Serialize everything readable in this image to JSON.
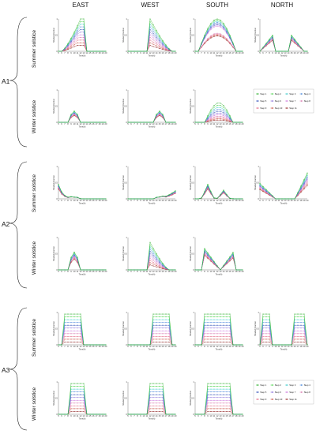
{
  "figure": {
    "columns": [
      "EAST",
      "WEST",
      "SOUTH",
      "NORTH"
    ],
    "groups": [
      "A1",
      "A2",
      "A3"
    ],
    "rows": [
      "Summer solstice",
      "Winter solstice"
    ]
  },
  "chart_data": {
    "type": "line",
    "xlabel": "Time(h)",
    "ylabel": "Shaded Fraction",
    "ylim": [
      0,
      1
    ],
    "x": [
      5,
      6,
      7,
      8,
      9,
      10,
      11,
      12,
      13,
      14,
      15,
      16,
      17,
      18,
      19,
      20
    ],
    "y_ticks": [
      "0",
      "0.5",
      "1"
    ],
    "legend": [
      {
        "name": "Step 1",
        "color": "#1faa1f"
      },
      {
        "name": "Step 2",
        "color": "#3ccf3c"
      },
      {
        "name": "Step 3",
        "color": "#2ac4c4"
      },
      {
        "name": "Step 4",
        "color": "#3d7fd9"
      },
      {
        "name": "Step 5",
        "color": "#1e3fb0"
      },
      {
        "name": "Step 6",
        "color": "#7a5cd6"
      },
      {
        "name": "Step 7",
        "color": "#c86ad9"
      },
      {
        "name": "Step 8",
        "color": "#d66ca8"
      },
      {
        "name": "Step 9",
        "color": "#e05a7a"
      },
      {
        "name": "Step 10",
        "color": "#c0392b"
      },
      {
        "name": "Step 11",
        "color": "#8b1a1a"
      }
    ],
    "panels": [
      {
        "group": "A1",
        "row": "Summer solstice",
        "col": "EAST",
        "shape": "rise",
        "start": 6,
        "end": 13,
        "peak": 1.0
      },
      {
        "group": "A1",
        "row": "Summer solstice",
        "col": "WEST",
        "shape": "fall",
        "start": 12,
        "end": 19,
        "peak": 1.0
      },
      {
        "group": "A1",
        "row": "Summer solstice",
        "col": "SOUTH",
        "shape": "dome",
        "start": 6,
        "end": 18,
        "peak": 1.0
      },
      {
        "group": "A1",
        "row": "Summer solstice",
        "col": "NORTH",
        "shape": "north",
        "start": 5,
        "end": 19,
        "peak": 0.5
      },
      {
        "group": "A1",
        "row": "Winter solstice",
        "col": "EAST",
        "shape": "bump",
        "start": 8,
        "end": 12,
        "peak": 0.35
      },
      {
        "group": "A1",
        "row": "Winter solstice",
        "col": "WEST",
        "shape": "bump",
        "start": 13,
        "end": 17,
        "peak": 0.35
      },
      {
        "group": "A1",
        "row": "Winter solstice",
        "col": "SOUTH",
        "shape": "dome",
        "start": 8,
        "end": 17,
        "peak": 0.6
      },
      {
        "group": "A2",
        "row": "Summer solstice",
        "col": "EAST",
        "shape": "early",
        "start": 5,
        "end": 12,
        "peak": 0.45
      },
      {
        "group": "A2",
        "row": "Summer solstice",
        "col": "WEST",
        "shape": "late",
        "start": 13,
        "end": 20,
        "peak": 0.25
      },
      {
        "group": "A2",
        "row": "Summer solstice",
        "col": "SOUTH",
        "shape": "double",
        "start": 7,
        "end": 17,
        "peak": 0.45
      },
      {
        "group": "A2",
        "row": "Summer solstice",
        "col": "NORTH",
        "shape": "north2",
        "start": 5,
        "end": 20,
        "peak": 0.8
      },
      {
        "group": "A2",
        "row": "Winter solstice",
        "col": "EAST",
        "shape": "bump",
        "start": 8,
        "end": 12,
        "peak": 0.55
      },
      {
        "group": "A2",
        "row": "Winter solstice",
        "col": "WEST",
        "shape": "fall",
        "start": 12,
        "end": 18,
        "peak": 0.85
      },
      {
        "group": "A2",
        "row": "Winter solstice",
        "col": "SOUTH",
        "shape": "vshape",
        "start": 8,
        "end": 17,
        "peak": 0.75
      },
      {
        "group": "A3",
        "row": "Summer solstice",
        "col": "EAST",
        "shape": "plateau",
        "start": 6,
        "end": 13,
        "peak": 0.95
      },
      {
        "group": "A3",
        "row": "Summer solstice",
        "col": "WEST",
        "shape": "plateau",
        "start": 12,
        "end": 19,
        "peak": 0.95
      },
      {
        "group": "A3",
        "row": "Summer solstice",
        "col": "SOUTH",
        "shape": "plateau",
        "start": 7,
        "end": 17,
        "peak": 0.95
      },
      {
        "group": "A3",
        "row": "Summer solstice",
        "col": "NORTH",
        "shape": "plateau2",
        "start": 5,
        "end": 20,
        "peak": 0.95
      },
      {
        "group": "A3",
        "row": "Winter solstice",
        "col": "EAST",
        "shape": "plateau",
        "start": 8,
        "end": 14,
        "peak": 0.95
      },
      {
        "group": "A3",
        "row": "Winter solstice",
        "col": "WEST",
        "shape": "plateau",
        "start": 11,
        "end": 17,
        "peak": 0.95
      },
      {
        "group": "A3",
        "row": "Winter solstice",
        "col": "SOUTH",
        "shape": "plateau",
        "start": 8,
        "end": 17,
        "peak": 0.95
      }
    ]
  }
}
